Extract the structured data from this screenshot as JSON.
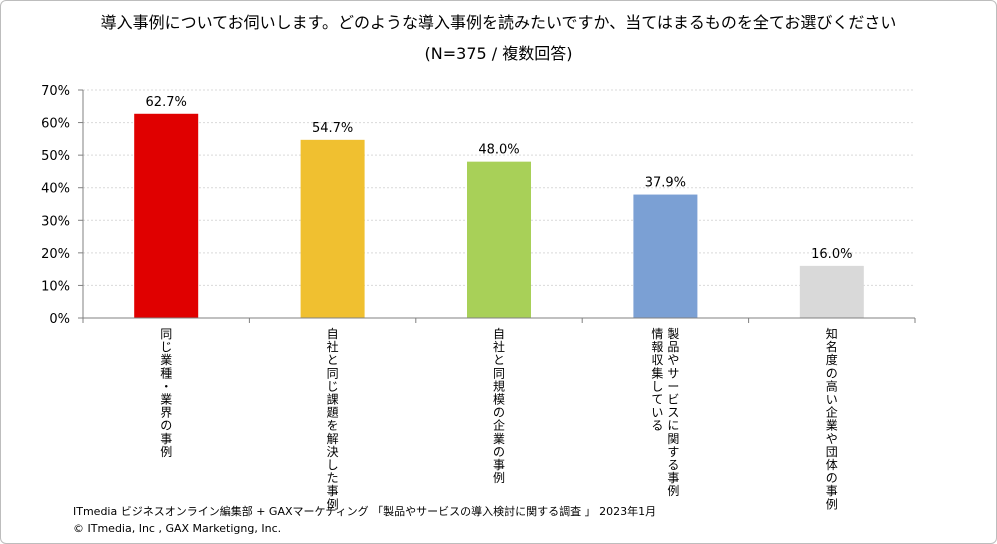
{
  "title": "導入事例についてお伺いします。どのような導入事例を読みたいですか、当てはまるものを全てお選びください",
  "subtitle": "(N=375 / 複数回答)",
  "footer": {
    "source": "ITmedia ビジネスオンライン編集部 + GAXマーケティング 「製品やサービスの導入検討に関する調査 」 2023年1月",
    "copyright": "© ITmedia, Inc , GAX Marketigng, Inc."
  },
  "chart_data": {
    "type": "bar",
    "categories": [
      [
        "同じ業種・業界の事例"
      ],
      [
        "自社と同じ課題を解決した事例"
      ],
      [
        "自社と同規模の企業の事例"
      ],
      [
        "製品やサービスに関する事例",
        "情報収集している"
      ],
      [
        "知名度の高い企業や団体の事例"
      ]
    ],
    "values": [
      62.7,
      54.7,
      48.0,
      37.9,
      16.0
    ],
    "data_labels": [
      "62.7%",
      "54.7%",
      "48.0%",
      "37.9%",
      "16.0%"
    ],
    "colors": [
      "#e00000",
      "#f0c030",
      "#a8d058",
      "#7ba0d4",
      "#d9d9d9"
    ],
    "ylim": [
      0,
      70
    ],
    "yticks": [
      "0%",
      "10%",
      "20%",
      "30%",
      "40%",
      "50%",
      "60%",
      "70%"
    ],
    "grid": true
  }
}
